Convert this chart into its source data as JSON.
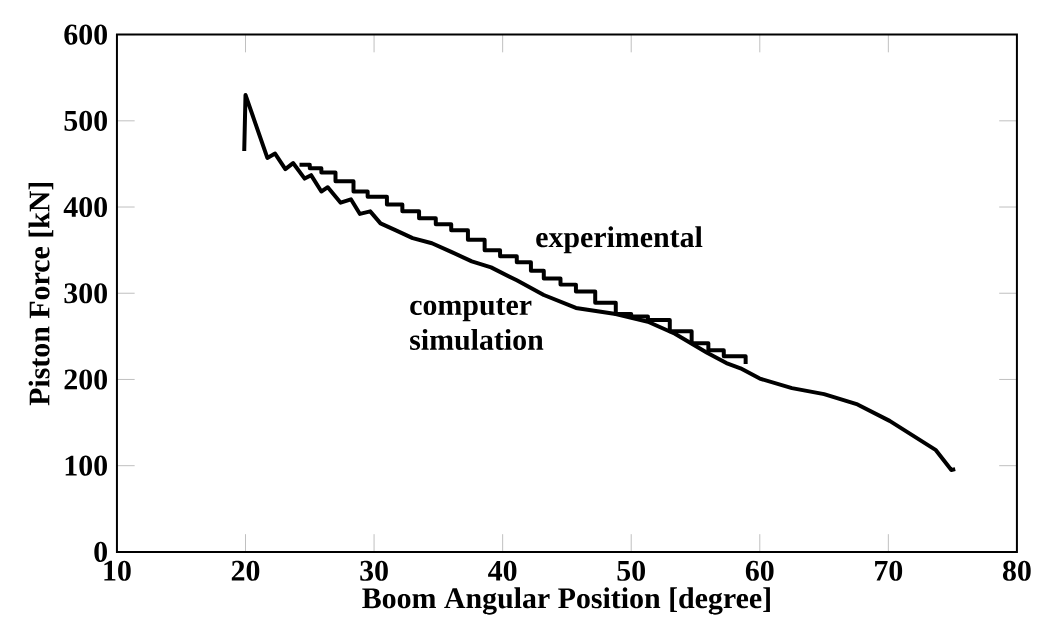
{
  "chart_data": {
    "type": "line",
    "xlabel": "Boom Angular Position [degree]",
    "ylabel": "Piston Force [kN]",
    "xlim": [
      10,
      80
    ],
    "xticks": [
      10,
      20,
      30,
      40,
      50,
      60,
      70,
      80
    ],
    "ylim": [
      0,
      600
    ],
    "yticks": [
      0,
      100,
      200,
      300,
      400,
      500,
      600
    ],
    "grid": false,
    "legend": false,
    "series": [
      {
        "name": "experimental",
        "type": "step",
        "color": "#000000",
        "x": [
          24.2,
          25.0,
          25.9,
          27.0,
          28.4,
          29.5,
          31.0,
          32.2,
          33.5,
          34.8,
          36.0,
          37.3,
          38.6,
          39.8,
          41.1,
          42.2,
          43.2,
          44.5,
          45.7,
          47.2,
          48.8,
          50.0,
          51.3,
          53.0,
          54.7,
          56.0,
          57.2,
          58.9
        ],
        "values": [
          449,
          445,
          440,
          430,
          418,
          412,
          403,
          395,
          387,
          380,
          373,
          362,
          350,
          343,
          336,
          326,
          317,
          310,
          302,
          289,
          276,
          273,
          269,
          256,
          242,
          234,
          227,
          218
        ]
      },
      {
        "name": "computer simulation",
        "type": "line",
        "color": "#000000",
        "x": [
          19.9,
          20.0,
          20.7,
          21.7,
          22.3,
          23.1,
          23.7,
          24.6,
          25.1,
          25.9,
          26.4,
          27.4,
          28.2,
          28.9,
          29.7,
          30.5,
          31.7,
          33.0,
          34.5,
          36.0,
          37.6,
          39.1,
          41.1,
          43.2,
          45.7,
          48.8,
          51.3,
          53.4,
          55.9,
          57.4,
          58.5,
          60.0,
          62.5,
          65.0,
          67.6,
          70.1,
          73.7,
          74.9,
          75.2
        ],
        "values": [
          465,
          530,
          500,
          457,
          462,
          444,
          451,
          433,
          437,
          418,
          423,
          405,
          409,
          392,
          395,
          381,
          373,
          364,
          358,
          348,
          337,
          330,
          315,
          298,
          283,
          276,
          267,
          253,
          231,
          219,
          213,
          201,
          190,
          183,
          171,
          152,
          118,
          95,
          96
        ]
      }
    ]
  }
}
